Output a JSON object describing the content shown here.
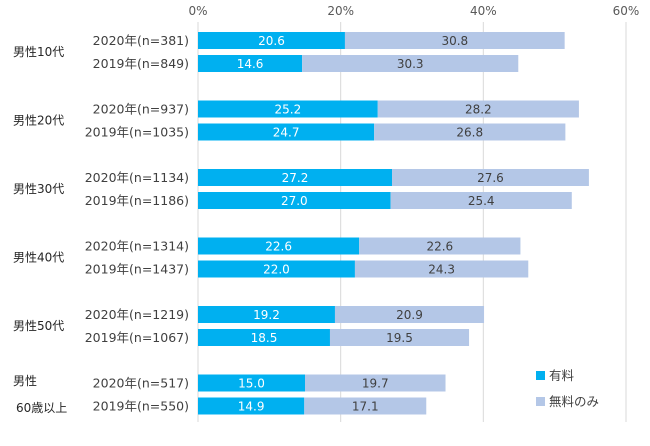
{
  "chart_data": {
    "type": "bar",
    "orientation": "horizontal",
    "stacked": true,
    "title": "",
    "xlabel": "",
    "ylabel": "",
    "xlim": [
      0,
      60
    ],
    "x_ticks": [
      "0%",
      "20%",
      "40%",
      "60%"
    ],
    "x_tick_values": [
      0,
      20,
      40,
      60
    ],
    "grid": true,
    "legend_position": "bottom-right",
    "colors": {
      "paid": "#00B0F0",
      "free": "#B4C7E7",
      "grid": "#D9D9D9"
    },
    "series": [
      {
        "name": "有料",
        "key": "paid"
      },
      {
        "name": "無料のみ",
        "key": "free"
      }
    ],
    "groups": [
      {
        "label": [
          "男性10代"
        ],
        "rows": [
          {
            "label": "2020年(n=381)",
            "paid": 20.6,
            "free": 30.8
          },
          {
            "label": "2019年(n=849)",
            "paid": 14.6,
            "free": 30.3
          }
        ]
      },
      {
        "label": [
          "男性20代"
        ],
        "rows": [
          {
            "label": "2020年(n=937)",
            "paid": 25.2,
            "free": 28.2
          },
          {
            "label": "2019年(n=1035)",
            "paid": 24.7,
            "free": 26.8
          }
        ]
      },
      {
        "label": [
          "男性30代"
        ],
        "rows": [
          {
            "label": "2020年(n=1134)",
            "paid": 27.2,
            "free": 27.6
          },
          {
            "label": "2019年(n=1186)",
            "paid": 27.0,
            "free": 25.4
          }
        ]
      },
      {
        "label": [
          "男性40代"
        ],
        "rows": [
          {
            "label": "2020年(n=1314)",
            "paid": 22.6,
            "free": 22.6
          },
          {
            "label": "2019年(n=1437)",
            "paid": 22.0,
            "free": 24.3
          }
        ]
      },
      {
        "label": [
          "男性50代"
        ],
        "rows": [
          {
            "label": "2020年(n=1219)",
            "paid": 19.2,
            "free": 20.9
          },
          {
            "label": "2019年(n=1067)",
            "paid": 18.5,
            "free": 19.5
          }
        ]
      },
      {
        "label": [
          "男性",
          "60歳以上"
        ],
        "rows": [
          {
            "label": "2020年(n=517)",
            "paid": 15.0,
            "free": 19.7
          },
          {
            "label": "2019年(n=550)",
            "paid": 14.9,
            "free": 17.1
          }
        ]
      }
    ]
  }
}
